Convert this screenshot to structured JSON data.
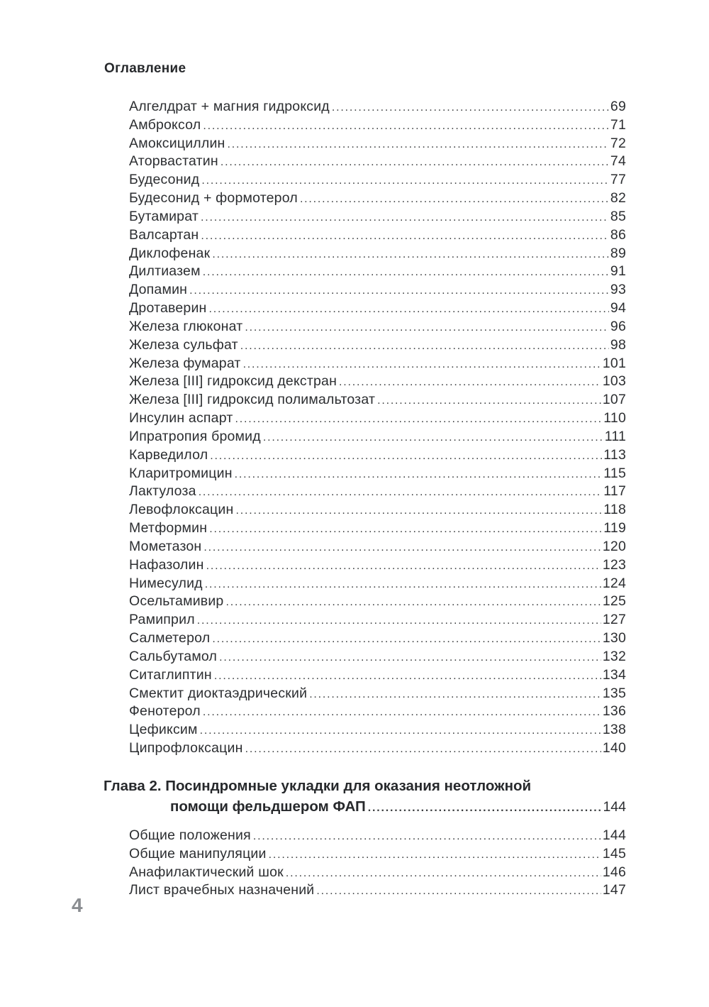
{
  "page": {
    "header": "Оглавление",
    "footer_page_number": "4"
  },
  "colors": {
    "background": "#ffffff",
    "text": "#2c2e31",
    "dot_leader": "#3d3f41",
    "footer_gray": "#8a8d91"
  },
  "toc": {
    "chapter1_entries": [
      {
        "title": "Алгелдрат + магния гидроксид",
        "page": "69"
      },
      {
        "title": "Амброксол",
        "page": "71"
      },
      {
        "title": "Амоксициллин",
        "page": "72"
      },
      {
        "title": "Аторвастатин",
        "page": "74"
      },
      {
        "title": "Будесонид",
        "page": "77"
      },
      {
        "title": "Будесонид + формотерол",
        "page": "82"
      },
      {
        "title": "Бутамират",
        "page": "85"
      },
      {
        "title": "Валсартан",
        "page": "86"
      },
      {
        "title": "Диклофенак",
        "page": "89"
      },
      {
        "title": "Дилтиазем",
        "page": "91"
      },
      {
        "title": "Допамин",
        "page": "93"
      },
      {
        "title": "Дротаверин",
        "page": "94"
      },
      {
        "title": "Железа глюконат",
        "page": "96"
      },
      {
        "title": "Железа сульфат",
        "page": "98"
      },
      {
        "title": "Железа фумарат",
        "page": "101"
      },
      {
        "title": "Железа [III] гидроксид декстран",
        "page": "103"
      },
      {
        "title": "Железа [III] гидроксид полимальтозат",
        "page": "107"
      },
      {
        "title": "Инсулин аспарт",
        "page": "110"
      },
      {
        "title": "Ипратропия бромид",
        "page": "111"
      },
      {
        "title": "Карведилол",
        "page": "113"
      },
      {
        "title": "Кларитромицин",
        "page": "115"
      },
      {
        "title": "Лактулоза",
        "page": "117"
      },
      {
        "title": "Левофлоксацин",
        "page": "118"
      },
      {
        "title": "Метформин",
        "page": "119"
      },
      {
        "title": "Мометазон",
        "page": "120"
      },
      {
        "title": "Нафазолин",
        "page": "123"
      },
      {
        "title": "Нимесулид",
        "page": "124"
      },
      {
        "title": "Осельтамивир",
        "page": "125"
      },
      {
        "title": "Рамиприл",
        "page": "127"
      },
      {
        "title": "Салметерол",
        "page": "130"
      },
      {
        "title": "Сальбутамол",
        "page": "132"
      },
      {
        "title": "Ситаглиптин",
        "page": "134"
      },
      {
        "title": "Смектит диоктаэдрический",
        "page": "135"
      },
      {
        "title": "Фенотерол",
        "page": "136"
      },
      {
        "title": "Цефиксим",
        "page": "138"
      },
      {
        "title": "Ципрофлоксацин",
        "page": "140"
      }
    ],
    "chapter2_heading": {
      "line1": "Глава 2. Посиндромные укладки для оказания неотложной",
      "line2": "помощи фельдшером ФАП",
      "page": "144"
    },
    "chapter2_entries": [
      {
        "title": "Общие положения",
        "page": "144"
      },
      {
        "title": "Общие манипуляции",
        "page": "145"
      },
      {
        "title": "Анафилактический шок",
        "page": "146"
      },
      {
        "title": "Лист врачебных назначений",
        "page": "147"
      }
    ]
  }
}
